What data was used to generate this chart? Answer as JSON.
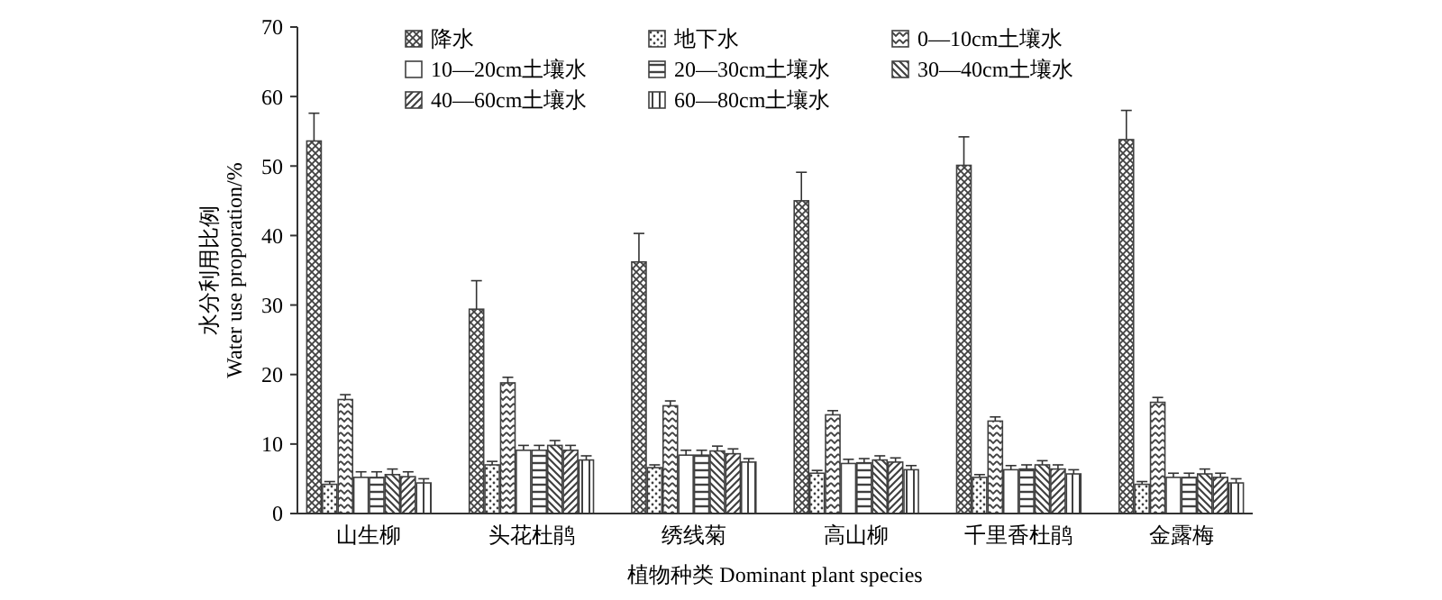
{
  "chart_data": {
    "type": "bar",
    "xlabel": "植物种类 Dominant plant species",
    "ylabel": "水分利用比例\nWater use proporation/%",
    "categories": [
      "山生柳",
      "头花杜鹃",
      "绣线菊",
      "高山柳",
      "千里香杜鹃",
      "金露梅"
    ],
    "ylim": [
      0,
      70
    ],
    "yticks": [
      0,
      10,
      20,
      30,
      40,
      50,
      60,
      70
    ],
    "grid": false,
    "legend": "top",
    "series": [
      {
        "name": "降水",
        "color": "#404040",
        "values": [
          53.6,
          29.4,
          36.2,
          45.0,
          50.1,
          53.8
        ],
        "errors": [
          4.0,
          4.1,
          4.1,
          4.1,
          4.1,
          4.2
        ]
      },
      {
        "name": "地下水",
        "color": "#404040",
        "values": [
          4.2,
          7.0,
          6.6,
          5.8,
          5.2,
          4.2
        ],
        "errors": [
          0.4,
          0.5,
          0.4,
          0.4,
          0.4,
          0.4
        ]
      },
      {
        "name": "0—10cm土壤水",
        "color": "#404040",
        "values": [
          16.4,
          18.8,
          15.5,
          14.2,
          13.3,
          16.0
        ],
        "errors": [
          0.7,
          0.8,
          0.7,
          0.6,
          0.6,
          0.7
        ]
      },
      {
        "name": "10—20cm土壤水",
        "color": "#404040",
        "values": [
          5.2,
          9.1,
          8.4,
          7.2,
          6.3,
          5.2
        ],
        "errors": [
          0.8,
          0.7,
          0.7,
          0.6,
          0.6,
          0.6
        ]
      },
      {
        "name": "20—30cm土壤水",
        "color": "#404040",
        "values": [
          5.2,
          9.1,
          8.4,
          7.3,
          6.4,
          5.2
        ],
        "errors": [
          0.8,
          0.7,
          0.7,
          0.6,
          0.6,
          0.6
        ]
      },
      {
        "name": "30—40cm土壤水",
        "color": "#404040",
        "values": [
          5.6,
          9.8,
          9.0,
          7.7,
          7.0,
          5.7
        ],
        "errors": [
          0.8,
          0.7,
          0.7,
          0.6,
          0.6,
          0.7
        ]
      },
      {
        "name": "40—60cm土壤水",
        "color": "#404040",
        "values": [
          5.3,
          9.1,
          8.6,
          7.4,
          6.4,
          5.2
        ],
        "errors": [
          0.7,
          0.7,
          0.7,
          0.6,
          0.6,
          0.6
        ]
      },
      {
        "name": "60—80cm土壤水",
        "color": "#404040",
        "values": [
          4.4,
          7.7,
          7.4,
          6.3,
          5.7,
          4.4
        ],
        "errors": [
          0.6,
          0.6,
          0.5,
          0.6,
          0.6,
          0.6
        ]
      }
    ]
  }
}
